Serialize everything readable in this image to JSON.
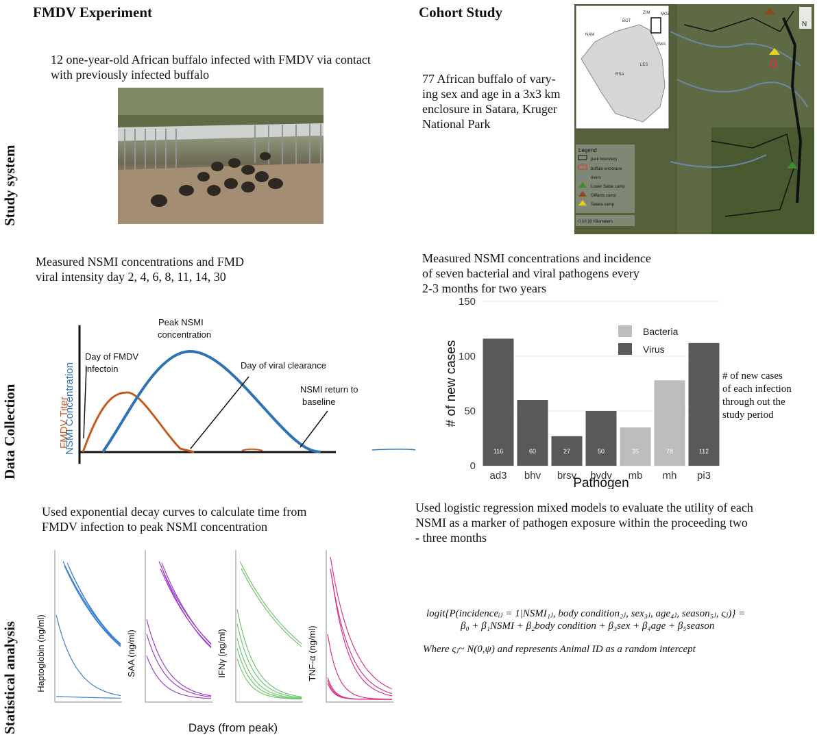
{
  "columns": {
    "left": "FMDV Experiment",
    "right": "Cohort Study"
  },
  "rows": {
    "study_system": "Study system",
    "data_collection": "Data Collection",
    "statistical_analysis": "Statistical analysis"
  },
  "fmdv": {
    "study_text_1": "12 one-year-old African buffalo infected with FMDV via contact",
    "study_text_2": "with previously infected buffalo",
    "data_text_1": "Measured NSMI concentrations and FMD",
    "data_text_2": "viral intensity day 2, 4, 6, 8, 11, 14, 30",
    "diagram": {
      "ylabel_fmdv": "FMDV Titer",
      "ylabel_nsmi": "NSMI Concentration",
      "ann_infection_1": "Day of FMDV",
      "ann_infection_2": "infectoin",
      "ann_peak_1": "Peak NSMI",
      "ann_peak_2": "concentration",
      "ann_clearance": "Day of viral clearance",
      "ann_return_1": "NSMI return to",
      "ann_return_2": "baseline"
    },
    "stat_text_1": "Used exponential decay curves to calculate time from",
    "stat_text_2": "FMDV infection to peak NSMI concentration",
    "decay_plots": {
      "xlabel": "Days (from peak)",
      "panels": [
        {
          "ylabel": "Haptoglobin (ng/ml)",
          "color": "#3a7fd0"
        },
        {
          "ylabel": "SAA (ng/ml)",
          "color": "#9b3fc9"
        },
        {
          "ylabel": "IFNγ (ng/ml)",
          "color": "#6fc56f"
        },
        {
          "ylabel": "TNF-α (ng/ml)",
          "color": "#d8358b"
        }
      ]
    }
  },
  "cohort": {
    "study_text_1": "77 African buffalo of vary-",
    "study_text_2": "ing sex and age in a 3x3 km",
    "study_text_3": "enclosure in Satara, Kruger",
    "study_text_4": "National Park",
    "map": {
      "legend_title": "Legend",
      "legend_items": [
        "park boundary",
        "buffalo enclosure",
        "rivers",
        "Lower Sabie camp",
        "Olifants camp",
        "Satara camp"
      ],
      "scale": "0    10    20 Kilometers",
      "north": "N",
      "inset_labels": [
        "BOT",
        "NAM",
        "ZIM",
        "MOZ",
        "SWA",
        "LES",
        "RSA"
      ]
    },
    "data_text_1": "Measured NSMI concentrations and incidence",
    "data_text_2": "of seven bacterial and viral pathogens every",
    "data_text_3": "2-3 months for two years",
    "chart_note_1": "# of new cases",
    "chart_note_2": "of each infection",
    "chart_note_3": "through out the",
    "chart_note_4": "study period",
    "stat_text_1": "Used logistic regression mixed models to evaluate the utility of each",
    "stat_text_2": "NSMI as a marker of pathogen exposure within the proceeding two",
    "stat_text_3": "- three months",
    "equation_line1": "logit{P(incidenceᵢⱼ = 1|NSMI₁ⱼ, body condition₂ⱼ, sex₃ⱼ, age₄ⱼ, season₅ⱼ, ςⱼ)} =",
    "equation_line2": "β₀ + β₁NSMI + β₂body condition + β₃sex + β₄age + β₅season",
    "equation_line3": "Where ςⱼ~ N(0,ψ) and represents Animal ID as a random intercept"
  },
  "chart_data": {
    "type": "bar",
    "categories": [
      "ad3",
      "bhv",
      "brsv",
      "bvdv",
      "mb",
      "mh",
      "pi3"
    ],
    "values": [
      116,
      60,
      27,
      50,
      35,
      78,
      112
    ],
    "group": [
      "Virus",
      "Virus",
      "Virus",
      "Virus",
      "Bacteria",
      "Bacteria",
      "Virus"
    ],
    "legend": [
      "Bacteria",
      "Virus"
    ],
    "colors": {
      "Bacteria": "#bdbdbd",
      "Virus": "#595959"
    },
    "xlabel": "Pathogen",
    "ylabel": "# of new cases",
    "ylim": [
      0,
      150
    ],
    "yticks": [
      0,
      50,
      100,
      150
    ],
    "legend_position": "top-right"
  }
}
